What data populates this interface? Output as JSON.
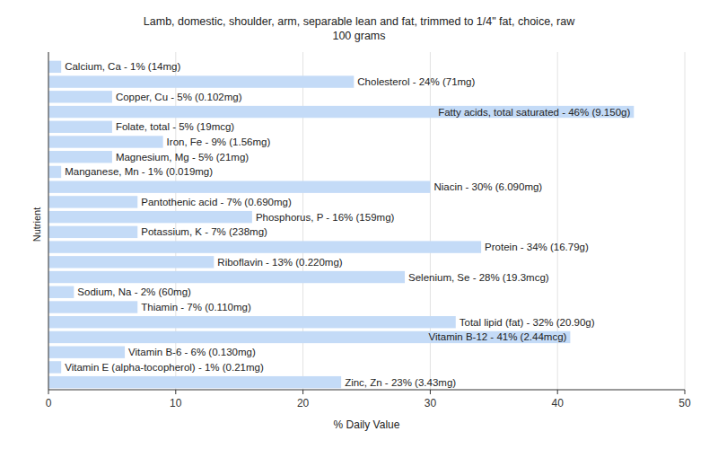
{
  "chart_data": {
    "type": "bar",
    "orientation": "horizontal",
    "title": "Lamb, domestic, shoulder, arm, separable lean and fat, trimmed to 1/4\" fat, choice, raw",
    "subtitle": "100 grams",
    "x_label": "% Daily Value",
    "y_label": "Nutrient",
    "categories": [
      "Calcium, Ca - 1% (14mg)",
      "Cholesterol - 24% (71mg)",
      "Copper, Cu - 5% (0.102mg)",
      "Fatty acids, total saturated - 46% (9.150g)",
      "Folate, total - 5% (19mcg)",
      "Iron, Fe - 9% (1.56mg)",
      "Magnesium, Mg - 5% (21mg)",
      "Manganese, Mn - 1% (0.019mg)",
      "Niacin - 30% (6.090mg)",
      "Pantothenic acid - 7% (0.690mg)",
      "Phosphorus, P - 16% (159mg)",
      "Potassium, K - 7% (238mg)",
      "Protein - 34% (16.79g)",
      "Riboflavin - 13% (0.220mg)",
      "Selenium, Se - 28% (19.3mcg)",
      "Sodium, Na - 2% (60mg)",
      "Thiamin - 7% (0.110mg)",
      "Total lipid (fat) - 32% (20.90g)",
      "Vitamin B-12 - 41% (2.44mcg)",
      "Vitamin B-6 - 6% (0.130mg)",
      "Vitamin E (alpha-tocopherol) - 1% (0.21mg)",
      "Zinc, Zn - 23% (3.43mg)"
    ],
    "values": [
      1,
      24,
      5,
      46,
      5,
      9,
      5,
      1,
      30,
      7,
      16,
      7,
      34,
      13,
      28,
      2,
      7,
      32,
      41,
      6,
      1,
      23
    ],
    "color": "#c4dbf7",
    "xlim": [
      0,
      50
    ],
    "xticks": [
      0,
      10,
      20,
      30,
      40,
      50
    ],
    "grid": true
  }
}
